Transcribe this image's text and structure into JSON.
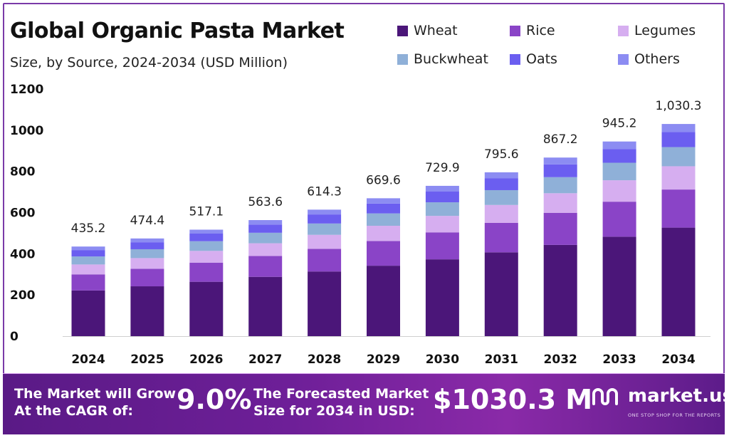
{
  "header": {
    "title": "Global Organic Pasta Market",
    "subtitle": "Size, by Source, 2024-2034 (USD Million)"
  },
  "legend": [
    {
      "label": "Wheat",
      "color": "#4b1679"
    },
    {
      "label": "Rice",
      "color": "#8a44c7"
    },
    {
      "label": "Legumes",
      "color": "#d6aef0"
    },
    {
      "label": "Buckwheat",
      "color": "#8fb0d8"
    },
    {
      "label": "Oats",
      "color": "#6b5ef0"
    },
    {
      "label": "Others",
      "color": "#8c8cf2"
    }
  ],
  "chart_data": {
    "type": "bar",
    "stacked": true,
    "categories": [
      "2024",
      "2025",
      "2026",
      "2027",
      "2028",
      "2029",
      "2030",
      "2031",
      "2032",
      "2033",
      "2034"
    ],
    "totals": [
      "435.2",
      "474.4",
      "517.1",
      "563.6",
      "614.3",
      "669.6",
      "729.9",
      "795.6",
      "867.2",
      "945.2",
      "1,030.3"
    ],
    "total_values": [
      435.2,
      474.4,
      517.1,
      563.6,
      614.3,
      669.6,
      729.9,
      795.6,
      867.2,
      945.2,
      1030.3
    ],
    "series": [
      {
        "name": "Wheat",
        "color": "#4b1679",
        "values": [
          222.0,
          242.0,
          264.0,
          288.0,
          314.0,
          342.0,
          373.0,
          407.0,
          443.0,
          483.0,
          527.0
        ]
      },
      {
        "name": "Rice",
        "color": "#8a44c7",
        "values": [
          78.0,
          85.0,
          93.0,
          101.0,
          110.0,
          120.0,
          131.0,
          143.0,
          156.0,
          170.0,
          185.0
        ]
      },
      {
        "name": "Legumes",
        "color": "#d6aef0",
        "values": [
          48.0,
          52.0,
          57.0,
          62.0,
          68.0,
          74.0,
          80.0,
          87.0,
          95.0,
          104.0,
          113.0
        ]
      },
      {
        "name": "Buckwheat",
        "color": "#8fb0d8",
        "values": [
          39.0,
          43.0,
          47.0,
          51.0,
          55.0,
          60.0,
          66.0,
          72.0,
          78.0,
          85.0,
          93.0
        ]
      },
      {
        "name": "Oats",
        "color": "#6b5ef0",
        "values": [
          31.0,
          34.0,
          37.0,
          40.0,
          44.0,
          48.0,
          52.0,
          57.0,
          62.0,
          67.0,
          73.0
        ]
      },
      {
        "name": "Others",
        "color": "#8c8cf2",
        "values": [
          17.2,
          18.4,
          19.1,
          21.6,
          23.3,
          25.6,
          27.9,
          29.6,
          33.2,
          36.2,
          39.3
        ]
      }
    ],
    "yticks": [
      "0",
      "200",
      "400",
      "600",
      "800",
      "1000",
      "1200"
    ],
    "ylim": [
      0,
      1200
    ],
    "grid": false,
    "legend_position": "top-right"
  },
  "footer": {
    "cagr_label_line1": "The Market will Grow",
    "cagr_label_line2": "At the CAGR of:",
    "cagr_value": "9.0%",
    "forecast_label_line1": "The Forecasted Market",
    "forecast_label_line2": "Size for 2034 in USD:",
    "forecast_value": "$1030.3 M",
    "brand_name": "market.us",
    "brand_tagline": "ONE STOP SHOP FOR THE REPORTS"
  }
}
